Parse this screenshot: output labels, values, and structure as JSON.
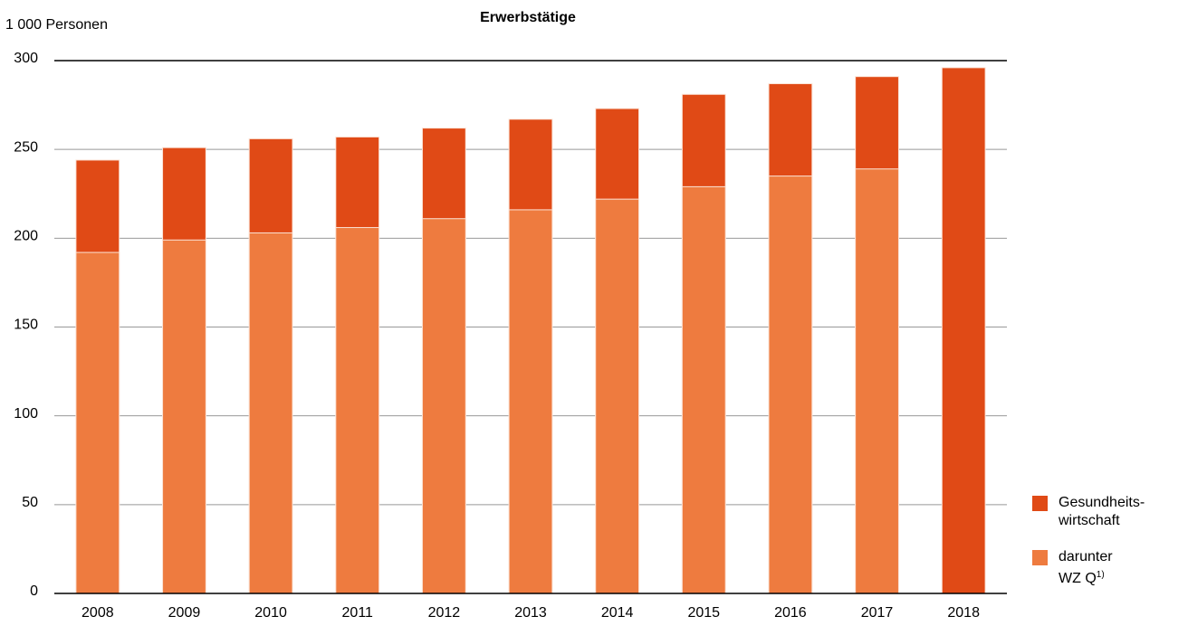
{
  "chart_data": {
    "type": "bar",
    "overlap": true,
    "title": "Erwerbstätige",
    "y_axis_label": "1 000 Personen",
    "categories": [
      "2008",
      "2009",
      "2010",
      "2011",
      "2012",
      "2013",
      "2014",
      "2015",
      "2016",
      "2017",
      "2018"
    ],
    "series": [
      {
        "name": "Gesundheits-\nwirtschaft",
        "color": "#e04a16",
        "values": [
          244,
          251,
          256,
          257,
          262,
          267,
          273,
          281,
          287,
          291,
          296
        ]
      },
      {
        "name": "darunter\n WZ Q",
        "footnote_marker": "1)",
        "color": "#ee7b3f",
        "values": [
          192,
          199,
          203,
          206,
          211,
          216,
          222,
          229,
          235,
          239,
          null
        ]
      }
    ],
    "ylim": [
      0,
      300
    ],
    "yticks": [
      0,
      50,
      100,
      150,
      200,
      250,
      300
    ],
    "grid": true,
    "legend": "right"
  }
}
